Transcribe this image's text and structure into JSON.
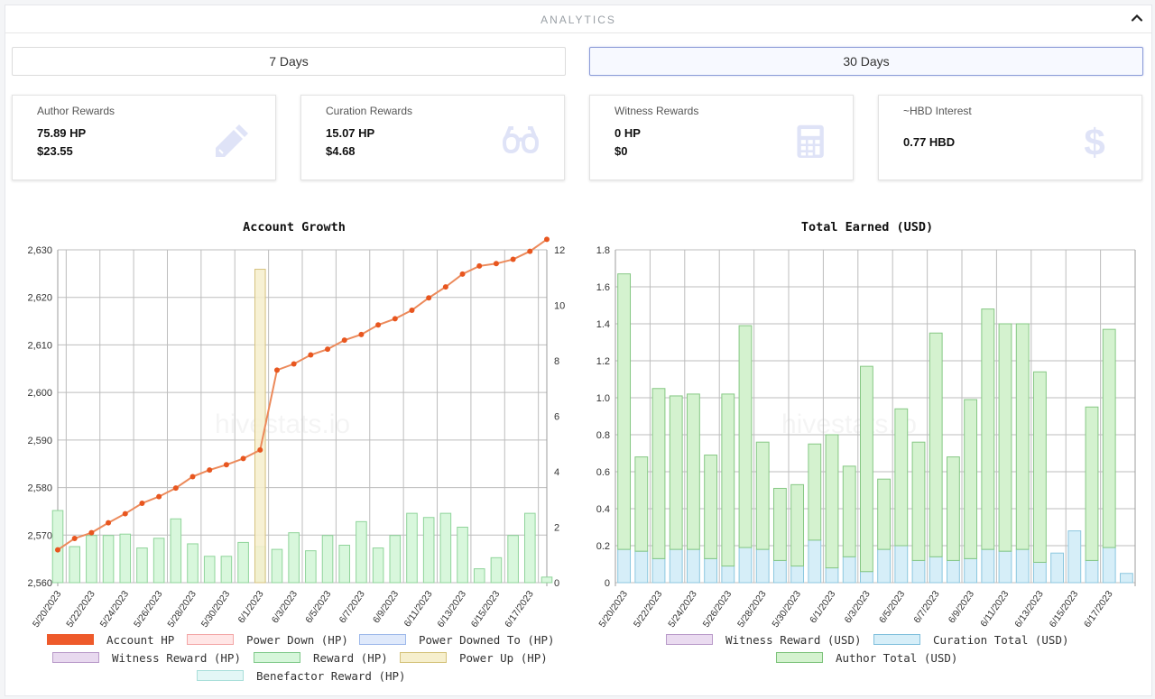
{
  "header": {
    "title": "ANALYTICS"
  },
  "tabs": [
    {
      "label": "7 Days",
      "active": false
    },
    {
      "label": "30 Days",
      "active": true
    }
  ],
  "cards": [
    {
      "label": "Author Rewards",
      "value1": "75.89 HP",
      "value2": "$23.55",
      "icon": "pencil-icon"
    },
    {
      "label": "Curation Rewards",
      "value1": "15.07 HP",
      "value2": "$4.68",
      "icon": "glasses-icon"
    },
    {
      "label": "Witness Rewards",
      "value1": "0 HP",
      "value2": "$0",
      "icon": "calculator-icon"
    },
    {
      "label": "~HBD Interest",
      "value1": "0.77 HBD",
      "value2": "",
      "icon": "dollar-icon"
    }
  ],
  "watermark": "hivestats.io",
  "colors": {
    "account_hp": "#ee5a2b",
    "reward_hp": "#c8f0cc",
    "power_up": "#f1e7b8",
    "curation": "#cdeaf6",
    "author": "#cdeec8"
  },
  "chart_data": [
    {
      "type": "bar",
      "title": "Account Growth",
      "x": [
        "5/20/2023",
        "5/21/2023",
        "5/22/2023",
        "5/23/2023",
        "5/24/2023",
        "5/25/2023",
        "5/26/2023",
        "5/27/2023",
        "5/28/2023",
        "5/29/2023",
        "5/30/2023",
        "5/31/2023",
        "6/1/2023",
        "6/2/2023",
        "6/3/2023",
        "6/4/2023",
        "6/5/2023",
        "6/6/2023",
        "6/7/2023",
        "6/8/2023",
        "6/9/2023",
        "6/10/2023",
        "6/11/2023",
        "6/12/2023",
        "6/13/2023",
        "6/14/2023",
        "6/15/2023",
        "6/16/2023",
        "6/17/2023",
        "6/18/2023"
      ],
      "x_tick_labels": [
        "5/20/2023",
        "5/22/2023",
        "5/24/2023",
        "5/26/2023",
        "5/28/2023",
        "5/30/2023",
        "6/1/2023",
        "6/3/2023",
        "6/5/2023",
        "6/7/2023",
        "6/9/2023",
        "6/11/2023",
        "6/13/2023",
        "6/15/2023",
        "6/17/2023"
      ],
      "y_left_ticks": [
        "2,560",
        "2,570",
        "2,580",
        "2,590",
        "2,600",
        "2,610",
        "2,620",
        "2,630"
      ],
      "y_right_ticks": [
        "0",
        "2",
        "4",
        "6",
        "8",
        "10",
        "12"
      ],
      "ylim_left": [
        2560,
        2630
      ],
      "ylim_right": [
        0,
        12
      ],
      "line_series": {
        "name": "Account HP",
        "axis": "left",
        "values": [
          2566.9,
          2569.3,
          2570.5,
          2572.6,
          2574.5,
          2576.7,
          2578.1,
          2579.9,
          2582.3,
          2583.7,
          2584.8,
          2586.1,
          2587.9,
          2604.7,
          2606.0,
          2607.9,
          2609.1,
          2611.0,
          2612.2,
          2614.2,
          2615.5,
          2617.3,
          2619.9,
          2622.2,
          2624.9,
          2626.6,
          2627.1,
          2628.0,
          2629.7,
          2632.2
        ]
      },
      "bar_series": [
        {
          "name": "Reward (HP)",
          "axis": "right",
          "values": [
            2.6,
            1.3,
            1.7,
            1.7,
            1.75,
            1.25,
            1.6,
            2.3,
            1.4,
            0.95,
            0.95,
            1.45,
            1.3,
            1.2,
            1.8,
            1.15,
            1.7,
            1.35,
            2.2,
            1.25,
            1.7,
            2.5,
            2.35,
            2.5,
            2.0,
            0.5,
            0.9,
            1.7,
            2.5,
            0.2
          ]
        },
        {
          "name": "Power Up (HP)",
          "axis": "right",
          "index": 12,
          "value": 11.3
        }
      ],
      "legend": [
        "Account HP",
        "Power Down (HP)",
        "Power Downed To (HP)",
        "Witness Reward (HP)",
        "Reward (HP)",
        "Power Up (HP)",
        "Benefactor Reward (HP)"
      ],
      "legend_colors": [
        "#ee5a2b",
        "#ffd6d6",
        "#dbe7fb",
        "#e6d7ee",
        "#d4f6d8",
        "#f6efcb",
        "#e2f7f6"
      ],
      "legend_placement": "bottom",
      "grid": true
    },
    {
      "type": "bar",
      "title": "Total Earned (USD)",
      "x": [
        "5/20/2023",
        "5/21/2023",
        "5/22/2023",
        "5/23/2023",
        "5/24/2023",
        "5/25/2023",
        "5/26/2023",
        "5/27/2023",
        "5/28/2023",
        "5/29/2023",
        "5/30/2023",
        "5/31/2023",
        "6/1/2023",
        "6/2/2023",
        "6/3/2023",
        "6/4/2023",
        "6/5/2023",
        "6/6/2023",
        "6/7/2023",
        "6/8/2023",
        "6/9/2023",
        "6/10/2023",
        "6/11/2023",
        "6/12/2023",
        "6/13/2023",
        "6/14/2023",
        "6/15/2023",
        "6/16/2023",
        "6/17/2023",
        "6/18/2023"
      ],
      "x_tick_labels": [
        "5/20/2023",
        "5/22/2023",
        "5/24/2023",
        "5/26/2023",
        "5/28/2023",
        "5/30/2023",
        "6/1/2023",
        "6/3/2023",
        "6/5/2023",
        "6/7/2023",
        "6/9/2023",
        "6/11/2023",
        "6/13/2023",
        "6/15/2023",
        "6/17/2023"
      ],
      "y_ticks": [
        "0",
        "0.2",
        "0.4",
        "0.6",
        "0.8",
        "1.0",
        "1.2",
        "1.4",
        "1.6",
        "1.8"
      ],
      "ylim": [
        0,
        1.8
      ],
      "stacked": true,
      "series": [
        {
          "name": "Curation Total (USD)",
          "values": [
            0.18,
            0.17,
            0.13,
            0.18,
            0.18,
            0.13,
            0.09,
            0.19,
            0.18,
            0.12,
            0.09,
            0.23,
            0.08,
            0.14,
            0.06,
            0.18,
            0.2,
            0.12,
            0.14,
            0.12,
            0.13,
            0.18,
            0.17,
            0.18,
            0.11,
            0.16,
            0.28,
            0.12,
            0.19,
            0.05
          ]
        },
        {
          "name": "Author Total (USD)",
          "values": [
            1.49,
            0.51,
            0.92,
            0.83,
            0.84,
            0.56,
            0.93,
            1.2,
            0.58,
            0.39,
            0.44,
            0.52,
            0.72,
            0.49,
            1.11,
            0.38,
            0.74,
            0.64,
            1.21,
            0.56,
            0.86,
            1.3,
            1.23,
            1.22,
            1.03,
            0,
            0,
            0.83,
            1.18,
            0
          ]
        }
      ],
      "legend": [
        "Witness Reward (USD)",
        "Curation Total (USD)",
        "Author Total (USD)"
      ],
      "legend_colors": [
        "#e8d7ee",
        "#d6eef8",
        "#d4f2cf"
      ],
      "legend_placement": "bottom",
      "grid": true
    }
  ]
}
